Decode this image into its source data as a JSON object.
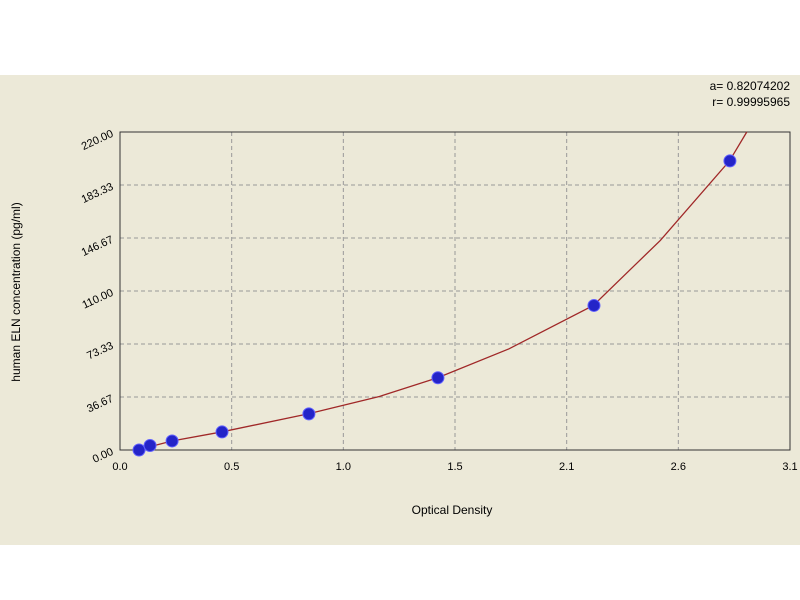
{
  "chart_data": {
    "type": "scatter",
    "annotations": [
      "a= 0.82074202",
      "r= 0.99995965"
    ],
    "x_label": "Optical Density",
    "y_label": "human ELN concentration (pg/ml)",
    "xlim": [
      0,
      3.1
    ],
    "xticks": [
      {
        "value": 0,
        "label": "0.0"
      },
      {
        "value": 0.5167,
        "label": "0.5"
      },
      {
        "value": 1.0333,
        "label": "1.0"
      },
      {
        "value": 1.55,
        "label": "1.5"
      },
      {
        "value": 2.0667,
        "label": "2.1"
      },
      {
        "value": 2.5833,
        "label": "2.6"
      },
      {
        "value": 3.1,
        "label": "3.1"
      }
    ],
    "ylim": [
      0,
      220
    ],
    "yticks": [
      {
        "value": 0,
        "label": "0.00"
      },
      {
        "value": 36.67,
        "label": "36.67"
      },
      {
        "value": 73.33,
        "label": "73.33"
      },
      {
        "value": 110,
        "label": "110.00"
      },
      {
        "value": 146.67,
        "label": "146.67"
      },
      {
        "value": 183.33,
        "label": "183.33"
      },
      {
        "value": 220,
        "label": "220.00"
      }
    ],
    "grid": true,
    "series": [
      {
        "type": "scatter",
        "color": "#2424c8",
        "x": [
          0.088,
          0.139,
          0.241,
          0.472,
          0.874,
          1.471,
          2.193,
          2.822
        ],
        "values": [
          0,
          3.125,
          6.25,
          12.5,
          25,
          50,
          100,
          200
        ]
      },
      {
        "type": "line",
        "color": "#a02828",
        "x": [
          0.08,
          0.24,
          0.47,
          0.87,
          1.2,
          1.47,
          1.8,
          2.19,
          2.5,
          2.82,
          2.9
        ],
        "values": [
          0,
          6.25,
          12.5,
          25,
          37,
          50,
          70,
          100,
          145,
          200,
          220
        ]
      }
    ]
  }
}
